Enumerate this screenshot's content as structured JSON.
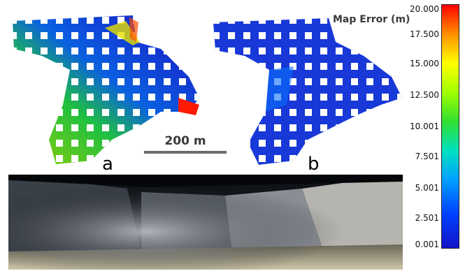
{
  "figure": {
    "panel_labels": {
      "a": "a",
      "b": "b"
    },
    "scale_bar": "200 m",
    "colorbar": {
      "title": "Map Error (m)",
      "ticks": [
        "20.000",
        "17.500",
        "15.000",
        "12.500",
        "10.001",
        "7.501",
        "5.001",
        "2.501",
        "0.001"
      ],
      "colors": [
        "#1414c8",
        "#0040ff",
        "#00a0ff",
        "#00e0c0",
        "#30e030",
        "#a0ff00",
        "#ffff00",
        "#ff9000",
        "#ff0000"
      ]
    }
  }
}
